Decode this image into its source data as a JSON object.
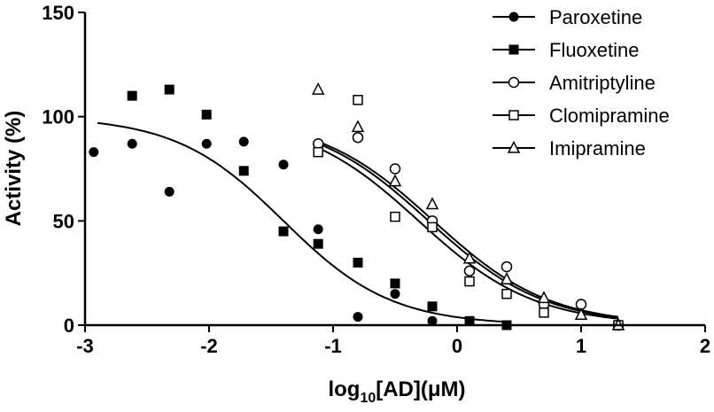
{
  "chart_data": {
    "type": "scatter",
    "title": "",
    "xlabel": {
      "main": "log",
      "sub": "10",
      "rest": "[AD](μM)"
    },
    "ylabel": "Activity (%)",
    "xlim": [
      -3,
      2
    ],
    "ylim": [
      0,
      150
    ],
    "xticks": [
      -3,
      -2,
      -1,
      0,
      1,
      2
    ],
    "yticks": [
      0,
      50,
      100,
      150
    ],
    "grid": false,
    "legend_position": "top-right",
    "series": [
      {
        "name": "Paroxetine",
        "marker": "circle-filled",
        "points": [
          [
            -2.93,
            83
          ],
          [
            -2.62,
            87
          ],
          [
            -2.32,
            64
          ],
          [
            -2.02,
            87
          ],
          [
            -1.72,
            88
          ],
          [
            -1.4,
            77
          ],
          [
            -1.12,
            46
          ],
          [
            -0.8,
            4
          ],
          [
            -0.5,
            15
          ],
          [
            -0.2,
            2
          ]
        ],
        "fit": {
          "top": 100,
          "bottom": 0,
          "logEC50": -1.4,
          "hill": 1.0,
          "range": [
            -2.9,
            0.4
          ]
        }
      },
      {
        "name": "Fluoxetine",
        "marker": "square-filled",
        "points": [
          [
            -2.62,
            110
          ],
          [
            -2.32,
            113
          ],
          [
            -2.02,
            101
          ],
          [
            -1.72,
            74
          ],
          [
            -1.4,
            45
          ],
          [
            -1.12,
            39
          ],
          [
            -0.8,
            30
          ],
          [
            -0.5,
            20
          ],
          [
            -0.2,
            9
          ],
          [
            0.1,
            2
          ],
          [
            0.4,
            0
          ]
        ],
        "fit": null
      },
      {
        "name": "Amitriptyline",
        "marker": "circle-open",
        "points": [
          [
            -1.12,
            87
          ],
          [
            -0.8,
            90
          ],
          [
            -0.5,
            75
          ],
          [
            -0.2,
            50
          ],
          [
            0.1,
            26
          ],
          [
            0.4,
            28
          ],
          [
            0.7,
            10
          ],
          [
            1.0,
            10
          ],
          [
            1.3,
            0
          ]
        ],
        "fit": {
          "top": 100,
          "bottom": 0,
          "logEC50": -0.19,
          "hill": 0.93,
          "range": [
            -1.12,
            1.3
          ]
        }
      },
      {
        "name": "Clomipramine",
        "marker": "square-open",
        "points": [
          [
            -1.12,
            83
          ],
          [
            -0.8,
            108
          ],
          [
            -0.5,
            52
          ],
          [
            -0.2,
            47
          ],
          [
            0.1,
            21
          ],
          [
            0.4,
            15
          ],
          [
            0.7,
            6
          ],
          [
            1.3,
            0
          ]
        ],
        "fit": {
          "top": 100,
          "bottom": 0,
          "logEC50": -0.31,
          "hill": 0.93,
          "range": [
            -1.12,
            1.3
          ]
        }
      },
      {
        "name": "Imipramine",
        "marker": "triangle-open",
        "points": [
          [
            -1.12,
            113
          ],
          [
            -0.8,
            95
          ],
          [
            -0.5,
            69
          ],
          [
            -0.2,
            58
          ],
          [
            0.1,
            32
          ],
          [
            0.4,
            22
          ],
          [
            0.7,
            13
          ],
          [
            1.0,
            5
          ],
          [
            1.3,
            0
          ]
        ],
        "fit": {
          "top": 100,
          "bottom": 0,
          "logEC50": -0.23,
          "hill": 0.93,
          "range": [
            -1.12,
            1.3
          ]
        }
      }
    ]
  }
}
